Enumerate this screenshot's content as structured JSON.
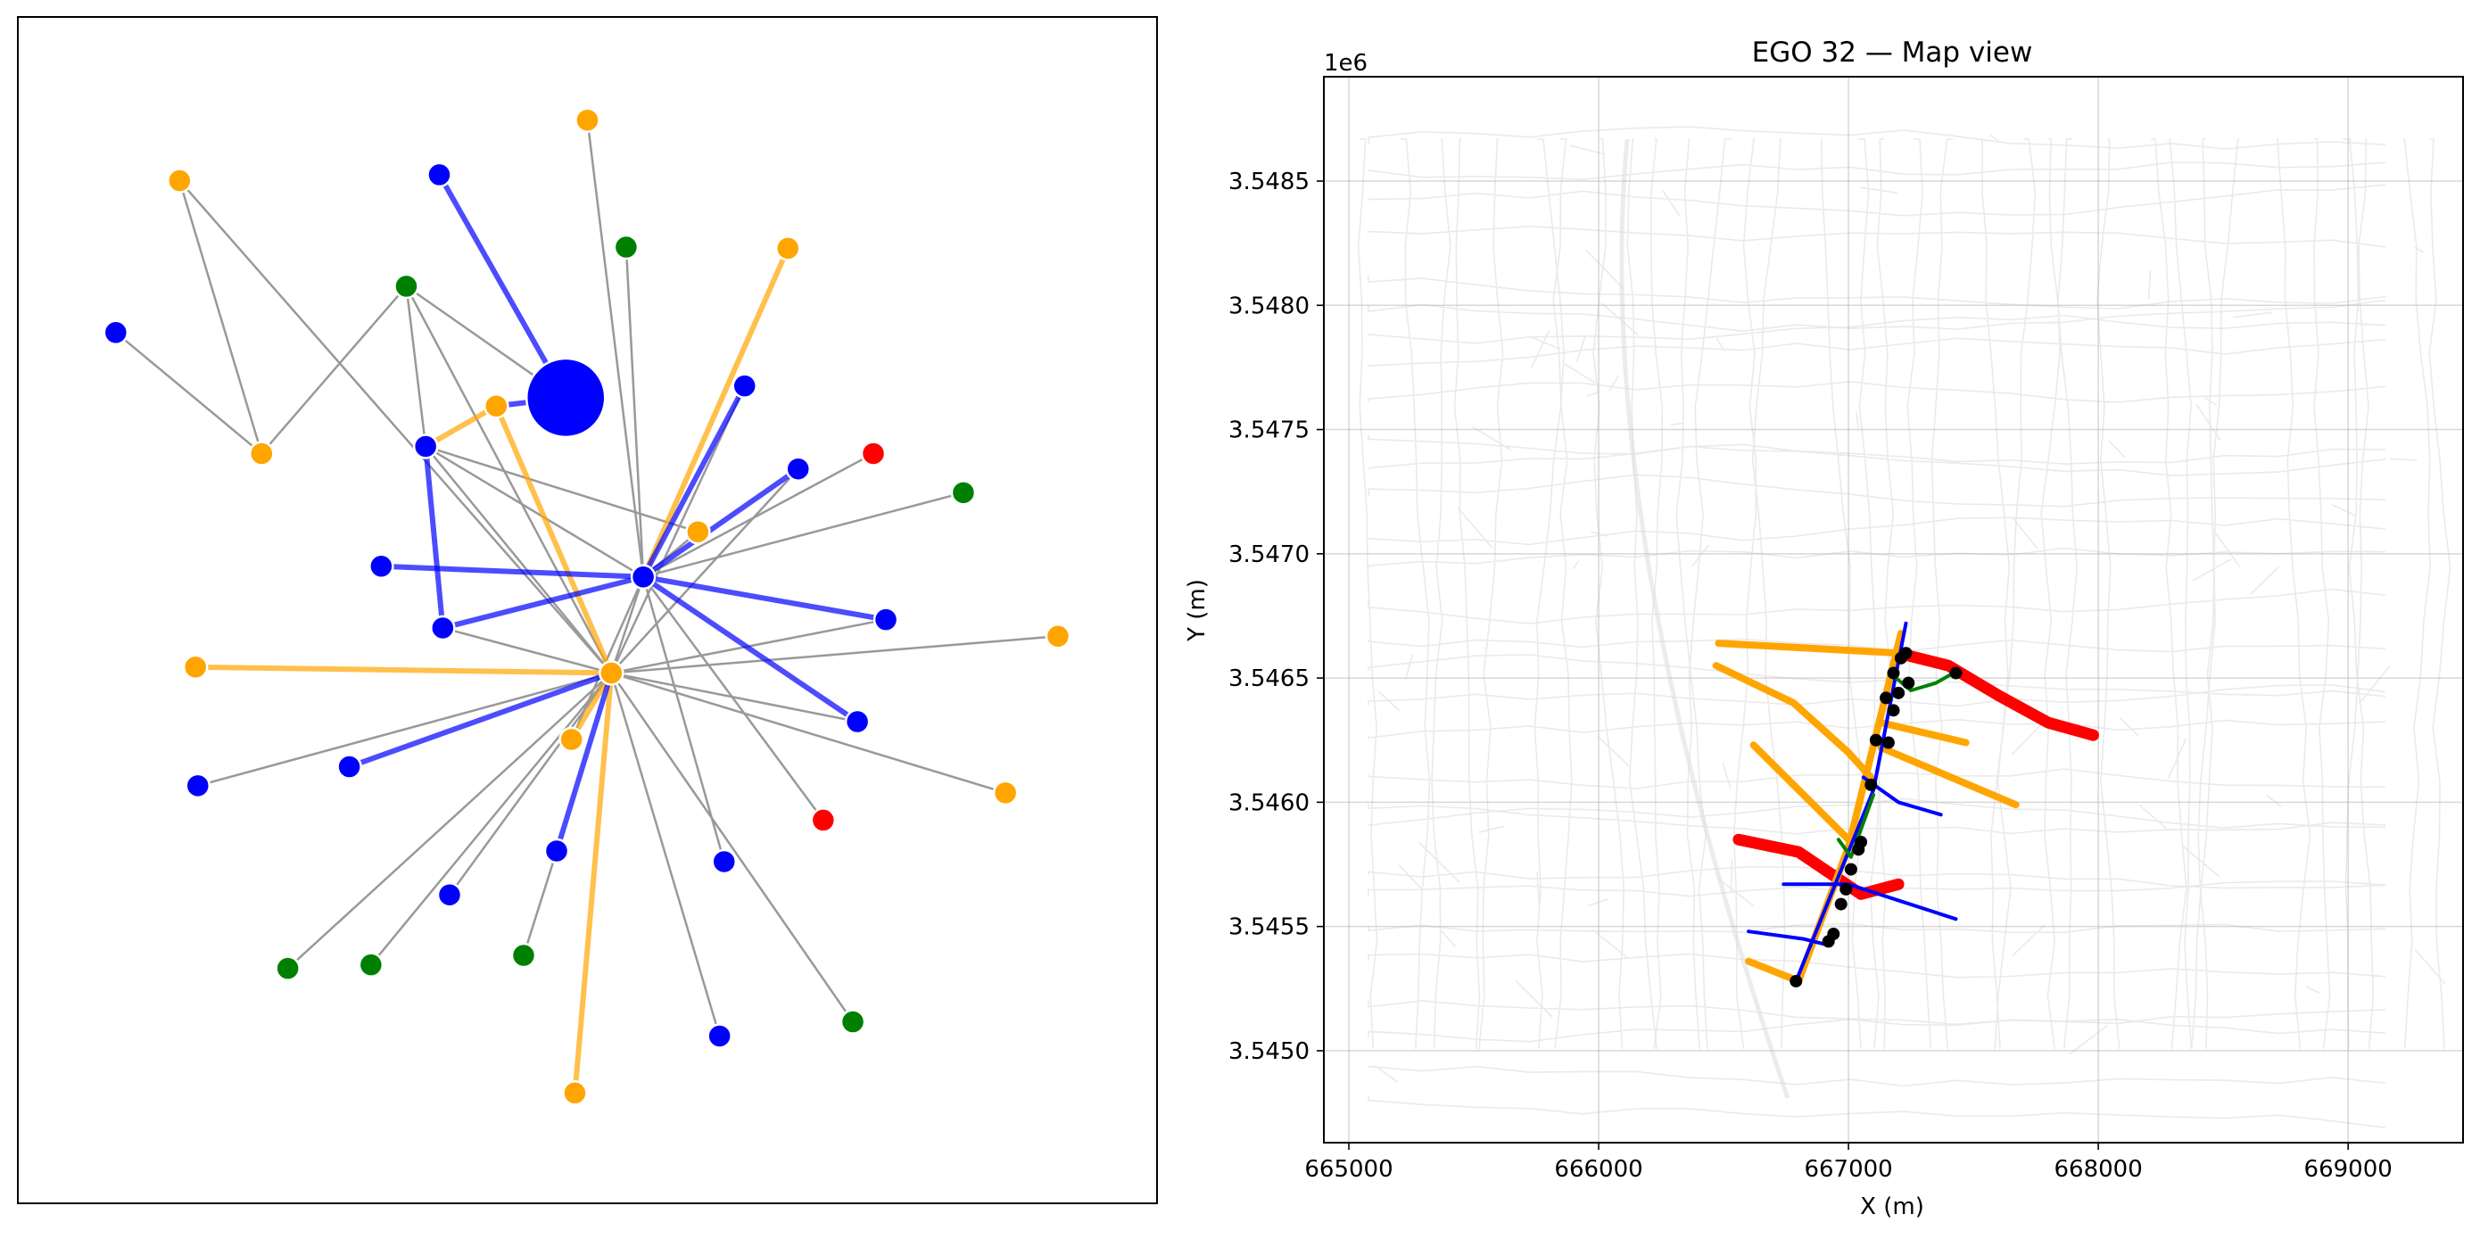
{
  "chart_data": [
    {
      "type": "network",
      "colors": {
        "blue": "#0000ff",
        "orange": "#ffa500",
        "green": "#008000",
        "red": "#ff0000",
        "edge": "#999999"
      },
      "nodes": [
        {
          "id": "hub",
          "color": "blue",
          "size": "large",
          "x": 0.481,
          "y": 0.679
        },
        {
          "id": "center",
          "color": "blue",
          "x": 0.549,
          "y": 0.528
        },
        {
          "id": "orange_center",
          "color": "orange",
          "x": 0.521,
          "y": 0.447
        },
        {
          "id": "n1",
          "color": "orange",
          "x": 0.5,
          "y": 0.913
        },
        {
          "id": "n2",
          "color": "orange",
          "x": 0.142,
          "y": 0.862
        },
        {
          "id": "n3",
          "color": "blue",
          "x": 0.37,
          "y": 0.867
        },
        {
          "id": "n4",
          "color": "green",
          "x": 0.534,
          "y": 0.806
        },
        {
          "id": "n5",
          "color": "orange",
          "x": 0.676,
          "y": 0.805
        },
        {
          "id": "n6",
          "color": "green",
          "x": 0.341,
          "y": 0.773
        },
        {
          "id": "n7",
          "color": "blue",
          "x": 0.086,
          "y": 0.734
        },
        {
          "id": "n8",
          "color": "orange",
          "x": 0.42,
          "y": 0.672
        },
        {
          "id": "n9",
          "color": "blue",
          "x": 0.638,
          "y": 0.689
        },
        {
          "id": "n10",
          "color": "blue",
          "x": 0.358,
          "y": 0.638
        },
        {
          "id": "n11",
          "color": "orange",
          "x": 0.214,
          "y": 0.632
        },
        {
          "id": "n12",
          "color": "blue",
          "x": 0.685,
          "y": 0.619
        },
        {
          "id": "n13",
          "color": "red",
          "x": 0.751,
          "y": 0.632
        },
        {
          "id": "n14",
          "color": "green",
          "x": 0.83,
          "y": 0.599
        },
        {
          "id": "n15",
          "color": "orange",
          "x": 0.597,
          "y": 0.566
        },
        {
          "id": "n16",
          "color": "blue",
          "x": 0.319,
          "y": 0.537
        },
        {
          "id": "n17",
          "color": "blue",
          "x": 0.373,
          "y": 0.485
        },
        {
          "id": "n18",
          "color": "blue",
          "x": 0.762,
          "y": 0.492
        },
        {
          "id": "n19",
          "color": "orange",
          "x": 0.913,
          "y": 0.478
        },
        {
          "id": "n20",
          "color": "orange",
          "x": 0.156,
          "y": 0.452
        },
        {
          "id": "n21",
          "color": "blue",
          "x": 0.737,
          "y": 0.406
        },
        {
          "id": "n22",
          "color": "orange",
          "x": 0.486,
          "y": 0.391
        },
        {
          "id": "n23",
          "color": "blue",
          "x": 0.158,
          "y": 0.352
        },
        {
          "id": "n24",
          "color": "blue",
          "x": 0.291,
          "y": 0.368
        },
        {
          "id": "n25",
          "color": "red",
          "x": 0.707,
          "y": 0.323
        },
        {
          "id": "n26",
          "color": "orange",
          "x": 0.867,
          "y": 0.346
        },
        {
          "id": "n27",
          "color": "blue",
          "x": 0.473,
          "y": 0.297
        },
        {
          "id": "n28",
          "color": "blue",
          "x": 0.62,
          "y": 0.288
        },
        {
          "id": "n29",
          "color": "green",
          "x": 0.237,
          "y": 0.198
        },
        {
          "id": "n30",
          "color": "green",
          "x": 0.31,
          "y": 0.201
        },
        {
          "id": "n31",
          "color": "green",
          "x": 0.444,
          "y": 0.209
        },
        {
          "id": "n32",
          "color": "blue",
          "x": 0.616,
          "y": 0.141
        },
        {
          "id": "n33",
          "color": "green",
          "x": 0.733,
          "y": 0.153
        },
        {
          "id": "n34",
          "color": "orange",
          "x": 0.489,
          "y": 0.093
        },
        {
          "id": "n35",
          "color": "blue",
          "x": 0.379,
          "y": 0.26
        }
      ],
      "edges": [
        {
          "s": "n1",
          "t": "center",
          "kind": "gray"
        },
        {
          "s": "n2",
          "t": "n11",
          "kind": "gray"
        },
        {
          "s": "n2",
          "t": "orange_center",
          "kind": "gray"
        },
        {
          "s": "n3",
          "t": "hub",
          "kind": "blue"
        },
        {
          "s": "n4",
          "t": "center",
          "kind": "gray"
        },
        {
          "s": "n5",
          "t": "center",
          "kind": "orange"
        },
        {
          "s": "n6",
          "t": "n11",
          "kind": "gray"
        },
        {
          "s": "n6",
          "t": "n10",
          "kind": "gray"
        },
        {
          "s": "n6",
          "t": "hub",
          "kind": "gray"
        },
        {
          "s": "n6",
          "t": "orange_center",
          "kind": "gray"
        },
        {
          "s": "n7",
          "t": "n11",
          "kind": "gray"
        },
        {
          "s": "n8",
          "t": "hub",
          "kind": "blue"
        },
        {
          "s": "n8",
          "t": "n10",
          "kind": "orange"
        },
        {
          "s": "n8",
          "t": "orange_center",
          "kind": "orange"
        },
        {
          "s": "n10",
          "t": "n17",
          "kind": "blue"
        },
        {
          "s": "n10",
          "t": "n15",
          "kind": "gray"
        },
        {
          "s": "n10",
          "t": "center",
          "kind": "gray"
        },
        {
          "s": "n10",
          "t": "orange_center",
          "kind": "gray"
        },
        {
          "s": "n9",
          "t": "center",
          "kind": "blue"
        },
        {
          "s": "n12",
          "t": "center",
          "kind": "blue"
        },
        {
          "s": "n13",
          "t": "center",
          "kind": "gray"
        },
        {
          "s": "n14",
          "t": "center",
          "kind": "gray"
        },
        {
          "s": "n15",
          "t": "center",
          "kind": "gray"
        },
        {
          "s": "n16",
          "t": "center",
          "kind": "blue"
        },
        {
          "s": "n17",
          "t": "center",
          "kind": "blue"
        },
        {
          "s": "n18",
          "t": "center",
          "kind": "blue"
        },
        {
          "s": "n19",
          "t": "orange_center",
          "kind": "gray"
        },
        {
          "s": "n20",
          "t": "orange_center",
          "kind": "orange"
        },
        {
          "s": "n21",
          "t": "center",
          "kind": "blue"
        },
        {
          "s": "n22",
          "t": "center",
          "kind": "gray"
        },
        {
          "s": "n23",
          "t": "orange_center",
          "kind": "gray"
        },
        {
          "s": "n24",
          "t": "orange_center",
          "kind": "blue"
        },
        {
          "s": "n25",
          "t": "center",
          "kind": "gray"
        },
        {
          "s": "n26",
          "t": "orange_center",
          "kind": "gray"
        },
        {
          "s": "n27",
          "t": "orange_center",
          "kind": "blue"
        },
        {
          "s": "n28",
          "t": "center",
          "kind": "gray"
        },
        {
          "s": "n29",
          "t": "orange_center",
          "kind": "gray"
        },
        {
          "s": "n30",
          "t": "orange_center",
          "kind": "gray"
        },
        {
          "s": "n31",
          "t": "n27",
          "kind": "gray"
        },
        {
          "s": "n32",
          "t": "orange_center",
          "kind": "gray"
        },
        {
          "s": "n33",
          "t": "orange_center",
          "kind": "gray"
        },
        {
          "s": "n34",
          "t": "orange_center",
          "kind": "orange"
        },
        {
          "s": "n35",
          "t": "orange_center",
          "kind": "gray"
        },
        {
          "s": "n22",
          "t": "orange_center",
          "kind": "orange"
        },
        {
          "s": "n21",
          "t": "orange_center",
          "kind": "gray"
        },
        {
          "s": "n18",
          "t": "orange_center",
          "kind": "gray"
        },
        {
          "s": "n12",
          "t": "orange_center",
          "kind": "gray"
        },
        {
          "s": "center",
          "t": "orange_center",
          "kind": "gray"
        },
        {
          "s": "n17",
          "t": "orange_center",
          "kind": "gray"
        },
        {
          "s": "n9",
          "t": "orange_center",
          "kind": "gray"
        }
      ]
    },
    {
      "type": "map",
      "title": "EGO 32 — Map view",
      "xlabel": "X (m)",
      "ylabel": "Y (m)",
      "y_offset_label": "1e6",
      "xlim": [
        664900,
        669460
      ],
      "ylim": [
        3.54463,
        3.54892
      ],
      "xticks": [
        665000,
        666000,
        667000,
        668000,
        669000
      ],
      "xtick_labels": [
        "665000",
        "666000",
        "667000",
        "668000",
        "669000"
      ],
      "yticks": [
        3.545,
        3.5455,
        3.546,
        3.5465,
        3.547,
        3.5475,
        3.548,
        3.5485
      ],
      "ytick_labels": [
        "3.5450",
        "3.5455",
        "3.5460",
        "3.5465",
        "3.5470",
        "3.5475",
        "3.5480",
        "3.5485"
      ],
      "grid": true,
      "colors": {
        "blue": "#0000ff",
        "orange": "#ffa500",
        "green": "#008000",
        "red": "#ff0000",
        "black": "#000000",
        "street": "#d9d9d9"
      },
      "routes": [
        {
          "color": "red",
          "width": "thick",
          "points": [
            [
              667200,
              3.5466
            ],
            [
              667400,
              3.54655
            ],
            [
              667600,
              3.54643
            ],
            [
              667800,
              3.54632
            ],
            [
              667980,
              3.54627
            ]
          ]
        },
        {
          "color": "red",
          "width": "thick",
          "points": [
            [
              666560,
              3.54585
            ],
            [
              666800,
              3.5458
            ],
            [
              667050,
              3.54563
            ],
            [
              667200,
              3.54567
            ]
          ]
        },
        {
          "color": "orange",
          "width": "medium",
          "points": [
            [
              666480,
              3.54664
            ],
            [
              667210,
              3.5466
            ]
          ]
        },
        {
          "color": "orange",
          "width": "medium",
          "points": [
            [
              666470,
              3.54655
            ],
            [
              666780,
              3.5464
            ],
            [
              667000,
              3.5462
            ],
            [
              667090,
              3.5461
            ]
          ]
        },
        {
          "color": "orange",
          "width": "medium",
          "points": [
            [
              667130,
              3.54632
            ],
            [
              667470,
              3.54624
            ]
          ]
        },
        {
          "color": "orange",
          "width": "medium",
          "points": [
            [
              667130,
              3.54622
            ],
            [
              667670,
              3.54599
            ]
          ]
        },
        {
          "color": "orange",
          "width": "medium",
          "points": [
            [
              666620,
              3.54623
            ],
            [
              667000,
              3.54585
            ]
          ]
        },
        {
          "color": "orange",
          "width": "medium",
          "points": [
            [
              666600,
              3.54536
            ],
            [
              666800,
              3.54528
            ]
          ]
        },
        {
          "color": "orange",
          "width": "medium",
          "points": [
            [
              666800,
              3.54528
            ],
            [
              667000,
              3.54582
            ],
            [
              667210,
              3.54668
            ]
          ]
        },
        {
          "color": "blue",
          "width": "thin",
          "points": [
            [
              666790,
              3.54528
            ],
            [
              667100,
              3.54605
            ],
            [
              667230,
              3.54672
            ]
          ]
        },
        {
          "color": "blue",
          "width": "thin",
          "points": [
            [
              667060,
              3.5461
            ],
            [
              667200,
              3.546
            ],
            [
              667370,
              3.54595
            ]
          ]
        },
        {
          "color": "blue",
          "width": "thin",
          "points": [
            [
              666740,
              3.54567
            ],
            [
              667000,
              3.54567
            ],
            [
              667430,
              3.54553
            ]
          ]
        },
        {
          "color": "blue",
          "width": "thin",
          "points": [
            [
              666600,
              3.54548
            ],
            [
              666820,
              3.54545
            ],
            [
              666900,
              3.54543
            ]
          ]
        },
        {
          "color": "green",
          "width": "thin",
          "points": [
            [
              667190,
              3.5465
            ],
            [
              667250,
              3.54645
            ],
            [
              667350,
              3.54648
            ],
            [
              667420,
              3.54652
            ]
          ]
        },
        {
          "color": "green",
          "width": "thin",
          "points": [
            [
              666960,
              3.54585
            ],
            [
              667010,
              3.54578
            ],
            [
              667100,
              3.54603
            ]
          ]
        }
      ],
      "stops": [
        [
          666790,
          3.54528
        ],
        [
          666920,
          3.54544
        ],
        [
          666940,
          3.54547
        ],
        [
          666970,
          3.54559
        ],
        [
          666990,
          3.54565
        ],
        [
          667010,
          3.54573
        ],
        [
          667040,
          3.54581
        ],
        [
          667050,
          3.54584
        ],
        [
          667090,
          3.54607
        ],
        [
          667110,
          3.54625
        ],
        [
          667160,
          3.54624
        ],
        [
          667150,
          3.54642
        ],
        [
          667180,
          3.54637
        ],
        [
          667180,
          3.54652
        ],
        [
          667200,
          3.54644
        ],
        [
          667210,
          3.54658
        ],
        [
          667230,
          3.5466
        ],
        [
          667240,
          3.54648
        ],
        [
          667430,
          3.54652
        ]
      ]
    }
  ]
}
